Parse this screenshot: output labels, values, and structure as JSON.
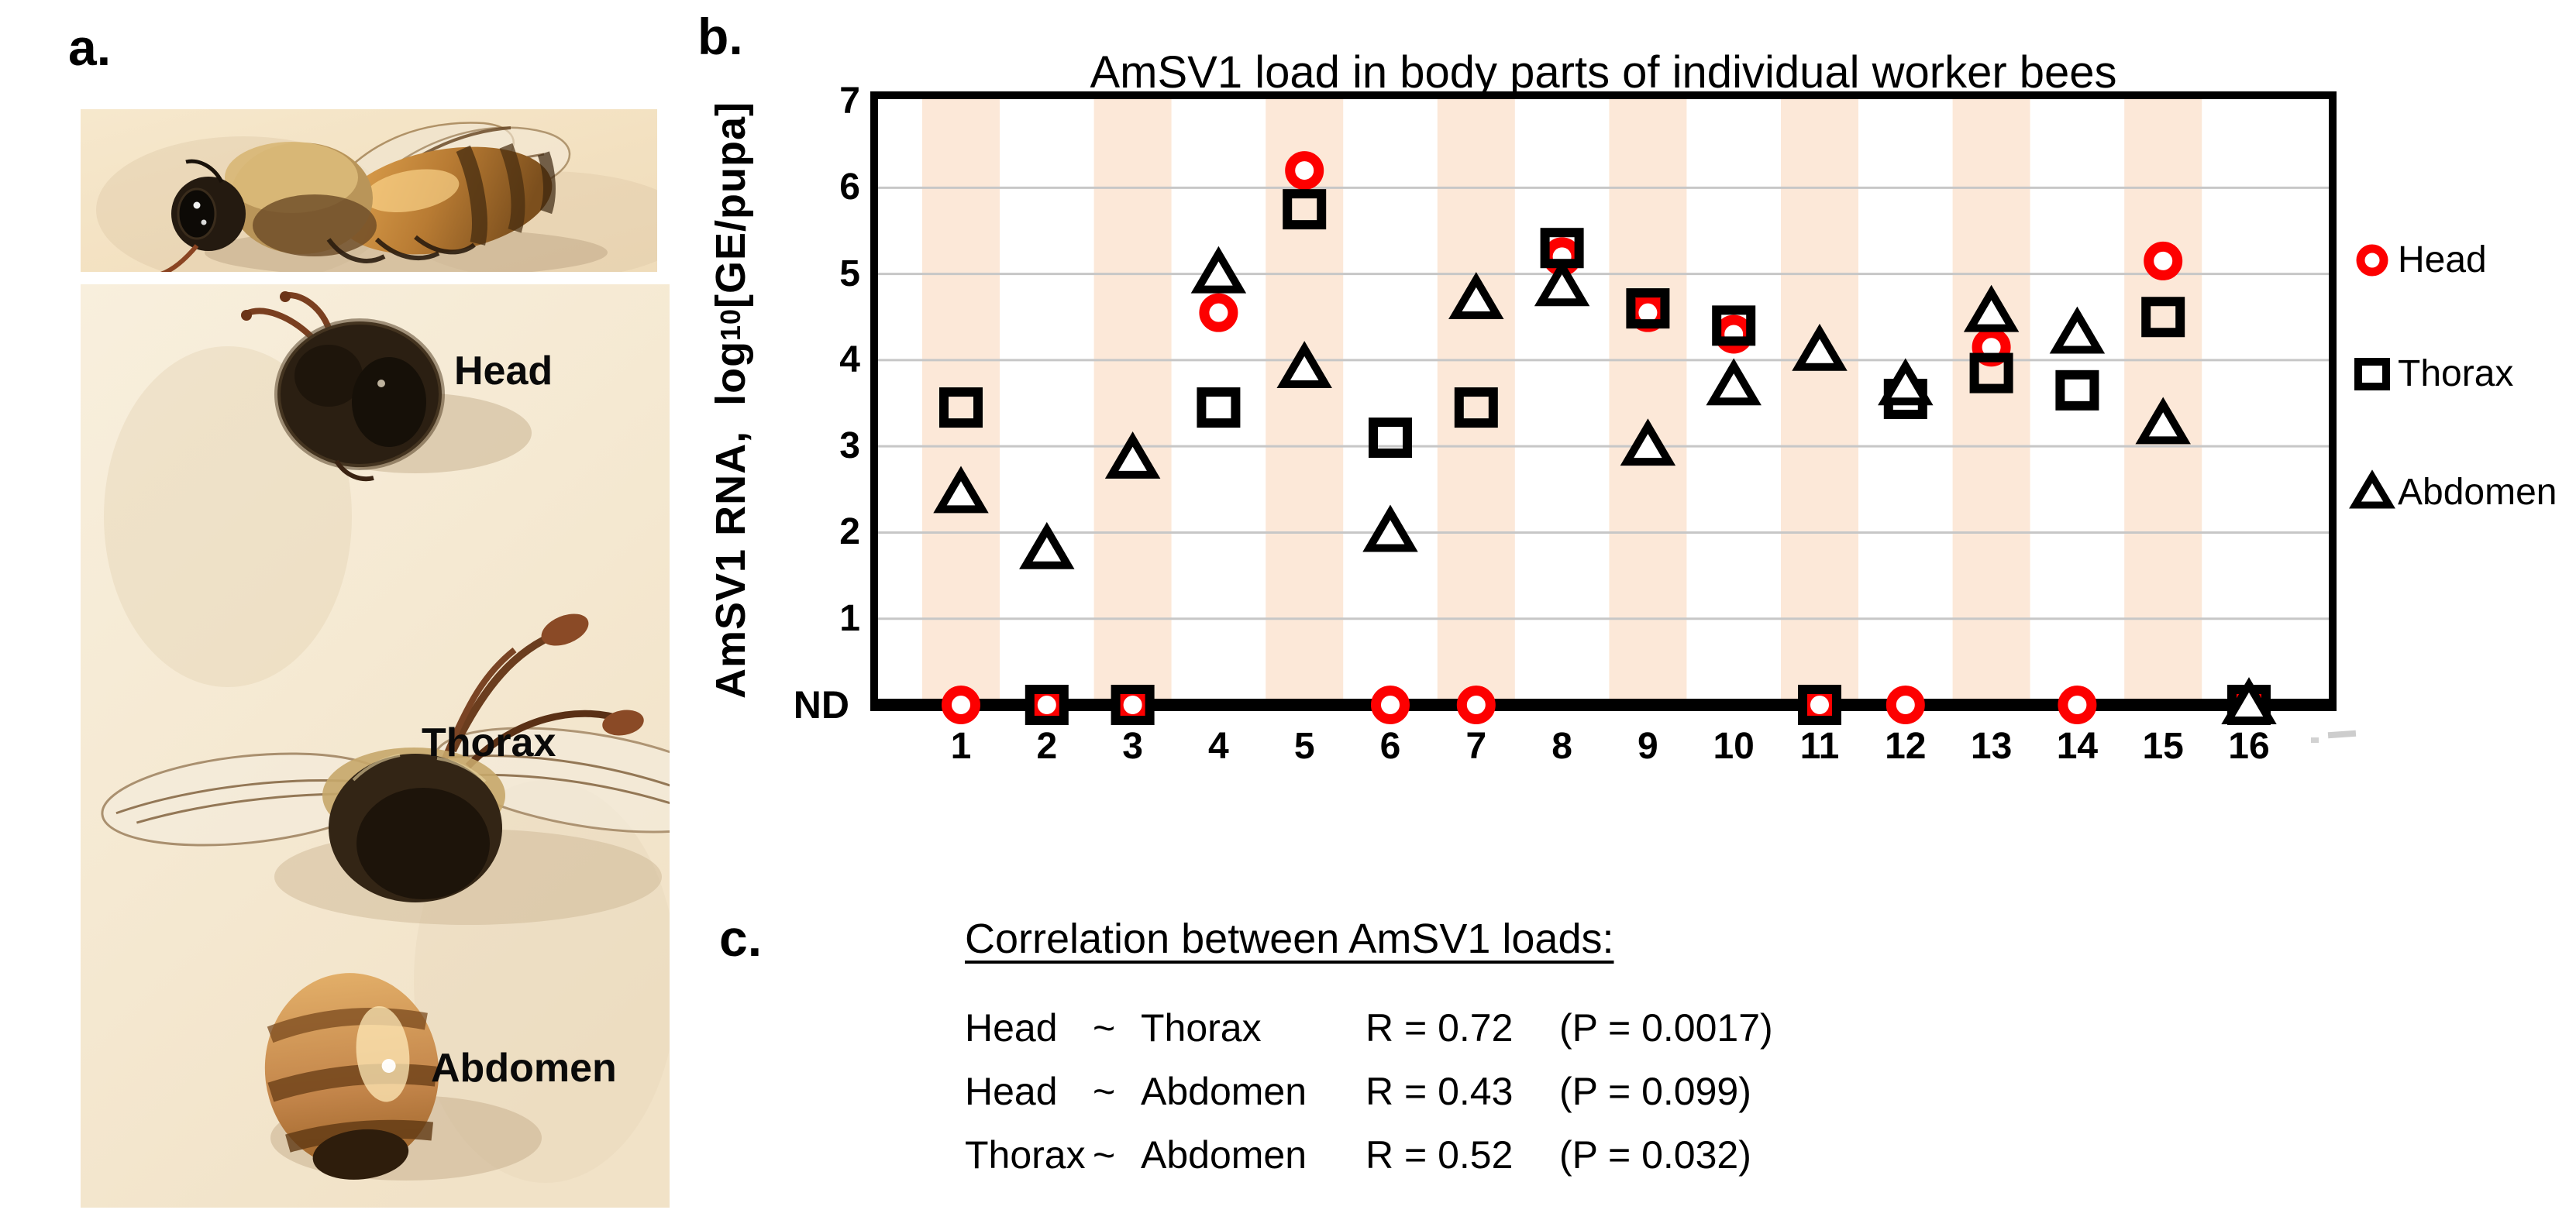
{
  "figure": {
    "panel_a_label": "a.",
    "panel_b_label": "b.",
    "panel_c_label": "c."
  },
  "photos": {
    "part_labels": {
      "head": "Head",
      "thorax": "Thorax",
      "abdomen": "Abdomen"
    }
  },
  "chart_data": {
    "type": "scatter",
    "title": "AmSV1 load in body parts of individual worker bees",
    "x_axis": {
      "categories": [
        "1",
        "2",
        "3",
        "4",
        "5",
        "6",
        "7",
        "8",
        "9",
        "10",
        "11",
        "12",
        "13",
        "14",
        "15",
        "16"
      ]
    },
    "y_axis": {
      "title_prefix": "AmSV1 RNA,  log",
      "title_sub": "10",
      "title_suffix": "[GE/pupa]",
      "tick_labels": [
        "7",
        "6",
        "5",
        "4",
        "3",
        "2",
        "1"
      ],
      "tick_values": [
        7,
        6,
        5,
        4,
        3,
        2,
        1
      ],
      "nd_label": "ND",
      "ylim": [
        0,
        7
      ],
      "grid": true
    },
    "nd_meaning": "not detected, plotted on the baseline",
    "band_color": "#fce8d8",
    "banded_columns": "odd categories shaded",
    "grid_color": "#c7c7c7",
    "series": [
      {
        "name": "Head",
        "marker": "circle",
        "color": "#fd0000",
        "values": [
          "ND",
          "ND",
          "ND",
          4.55,
          6.2,
          "ND",
          "ND",
          5.2,
          4.55,
          4.3,
          "ND",
          "ND",
          4.15,
          "ND",
          5.15,
          "ND"
        ]
      },
      {
        "name": "Thorax",
        "marker": "square",
        "color": "#000000",
        "values": [
          3.45,
          "ND",
          "ND",
          3.45,
          5.75,
          3.1,
          3.45,
          5.3,
          4.6,
          4.4,
          "ND",
          3.55,
          3.85,
          3.65,
          4.5,
          "ND"
        ]
      },
      {
        "name": "Abdomen",
        "marker": "triangle",
        "color": "#000000",
        "values": [
          2.45,
          1.8,
          2.85,
          5.0,
          3.9,
          2.0,
          4.7,
          4.85,
          3.0,
          3.7,
          4.1,
          3.7,
          4.55,
          4.3,
          3.25,
          "ND"
        ]
      }
    ],
    "legend": {
      "position": "right",
      "items": [
        {
          "label": "Head",
          "marker": "circle",
          "color": "#fd0000"
        },
        {
          "label": "Thorax",
          "marker": "square",
          "color": "#000000"
        },
        {
          "label": "Abdomen",
          "marker": "triangle",
          "color": "#000000"
        }
      ]
    }
  },
  "panel_c": {
    "heading": "Correlation between AmSV1 loads:",
    "rows": [
      {
        "left": "Head",
        "op": "~",
        "right": "Thorax",
        "r": "R = 0.72",
        "p": "(P = 0.0017)"
      },
      {
        "left": "Head",
        "op": "~",
        "right": "Abdomen",
        "r": "R = 0.43",
        "p": "(P = 0.099)"
      },
      {
        "left": "Thorax",
        "op": "~",
        "right": "Abdomen",
        "r": "R = 0.52",
        "p": "(P = 0.032)"
      }
    ]
  }
}
